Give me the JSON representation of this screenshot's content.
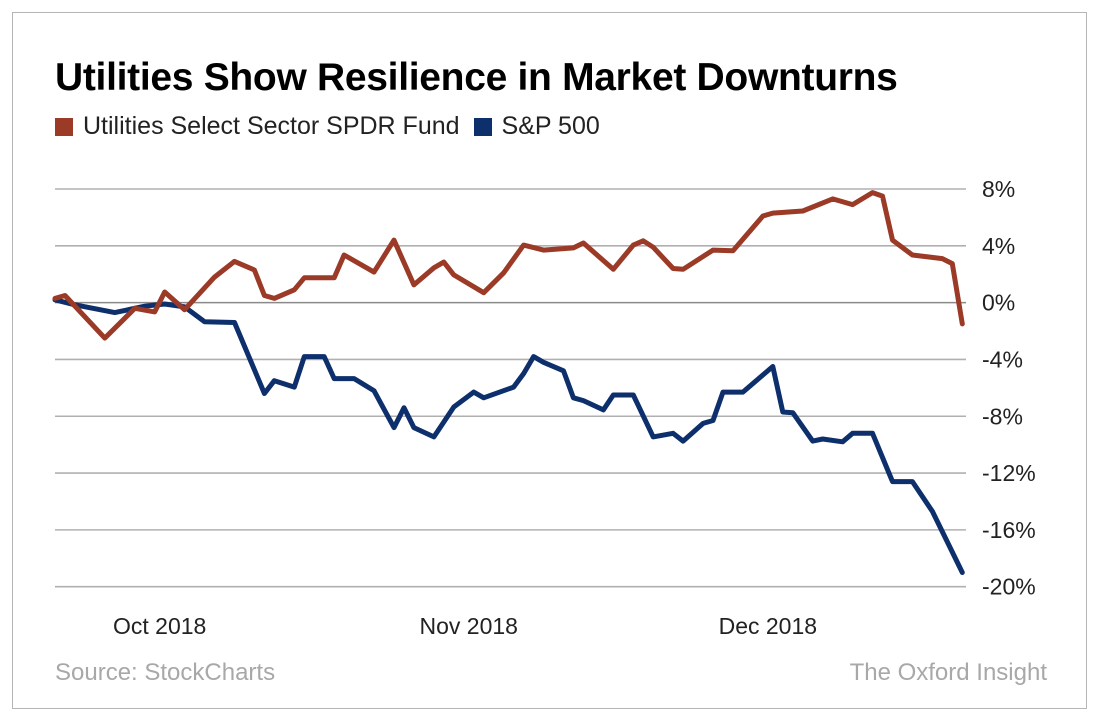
{
  "chart_data": {
    "type": "line",
    "title": "Utilities Show Resilience in Market Downturns",
    "xlabel": "",
    "ylabel": "",
    "x_tick_labels": [
      {
        "label": "Oct 2018",
        "date": "2018-10-01"
      },
      {
        "label": "Nov 2018",
        "date": "2018-11-01"
      },
      {
        "label": "Dec 2018",
        "date": "2018-12-01"
      }
    ],
    "y_ticks": [
      8,
      4,
      0,
      -4,
      -8,
      -12,
      -16,
      -20
    ],
    "y_tick_labels": [
      "8%",
      "4%",
      "0%",
      "-4%",
      "-8%",
      "-12%",
      "-16%",
      "-20%"
    ],
    "ylim": [
      -20,
      8
    ],
    "xlim": [
      "2018-09-20",
      "2018-12-20"
    ],
    "y_axis_side": "right",
    "grid": "horizontal",
    "legend_placement": "top-left",
    "series": [
      {
        "name": "Utilities Select Sector SPDR Fund",
        "color": "#9b3a26",
        "points": [
          [
            "2018-09-20",
            0.3
          ],
          [
            "2018-09-21",
            0.5
          ],
          [
            "2018-09-25",
            -2.5
          ],
          [
            "2018-09-28",
            -0.4
          ],
          [
            "2018-09-30",
            -0.65
          ],
          [
            "2018-10-01",
            0.75
          ],
          [
            "2018-10-03",
            -0.5
          ],
          [
            "2018-10-06",
            1.8
          ],
          [
            "2018-10-08",
            2.9
          ],
          [
            "2018-10-10",
            2.3
          ],
          [
            "2018-10-11",
            0.5
          ],
          [
            "2018-10-12",
            0.3
          ],
          [
            "2018-10-14",
            0.9
          ],
          [
            "2018-10-15",
            1.75
          ],
          [
            "2018-10-18",
            1.75
          ],
          [
            "2018-10-19",
            3.35
          ],
          [
            "2018-10-22",
            2.15
          ],
          [
            "2018-10-24",
            4.4
          ],
          [
            "2018-10-26",
            1.25
          ],
          [
            "2018-10-28",
            2.45
          ],
          [
            "2018-10-29",
            2.85
          ],
          [
            "2018-10-30",
            1.95
          ],
          [
            "2018-11-02",
            0.7
          ],
          [
            "2018-11-04",
            2.1
          ],
          [
            "2018-11-06",
            4.05
          ],
          [
            "2018-11-08",
            3.7
          ],
          [
            "2018-11-11",
            3.85
          ],
          [
            "2018-11-12",
            4.2
          ],
          [
            "2018-11-15",
            2.35
          ],
          [
            "2018-11-17",
            4.05
          ],
          [
            "2018-11-18",
            4.35
          ],
          [
            "2018-11-19",
            3.9
          ],
          [
            "2018-11-21",
            2.4
          ],
          [
            "2018-11-22",
            2.35
          ],
          [
            "2018-11-25",
            3.7
          ],
          [
            "2018-11-27",
            3.65
          ],
          [
            "2018-11-30",
            6.1
          ],
          [
            "2018-12-01",
            6.3
          ],
          [
            "2018-12-04",
            6.45
          ],
          [
            "2018-12-07",
            7.3
          ],
          [
            "2018-12-09",
            6.9
          ],
          [
            "2018-12-11",
            7.75
          ],
          [
            "2018-12-12",
            7.5
          ],
          [
            "2018-12-13",
            4.4
          ],
          [
            "2018-12-15",
            3.35
          ],
          [
            "2018-12-18",
            3.1
          ],
          [
            "2018-12-19",
            2.75
          ],
          [
            "2018-12-20",
            -1.5
          ]
        ]
      },
      {
        "name": "S&P 500",
        "color": "#0d2f6b",
        "points": [
          [
            "2018-09-20",
            0.2
          ],
          [
            "2018-09-22",
            -0.15
          ],
          [
            "2018-09-26",
            -0.7
          ],
          [
            "2018-09-29",
            -0.25
          ],
          [
            "2018-10-01",
            -0.1
          ],
          [
            "2018-10-03",
            -0.3
          ],
          [
            "2018-10-05",
            -1.35
          ],
          [
            "2018-10-08",
            -1.4
          ],
          [
            "2018-10-11",
            -6.4
          ],
          [
            "2018-10-12",
            -5.5
          ],
          [
            "2018-10-14",
            -5.95
          ],
          [
            "2018-10-15",
            -3.8
          ],
          [
            "2018-10-17",
            -3.8
          ],
          [
            "2018-10-18",
            -5.35
          ],
          [
            "2018-10-20",
            -5.35
          ],
          [
            "2018-10-22",
            -6.2
          ],
          [
            "2018-10-24",
            -8.8
          ],
          [
            "2018-10-25",
            -7.4
          ],
          [
            "2018-10-26",
            -8.8
          ],
          [
            "2018-10-28",
            -9.45
          ],
          [
            "2018-10-30",
            -7.35
          ],
          [
            "2018-11-01",
            -6.3
          ],
          [
            "2018-11-02",
            -6.7
          ],
          [
            "2018-11-05",
            -5.95
          ],
          [
            "2018-11-06",
            -5.0
          ],
          [
            "2018-11-07",
            -3.8
          ],
          [
            "2018-11-08",
            -4.2
          ],
          [
            "2018-11-10",
            -4.8
          ],
          [
            "2018-11-11",
            -6.7
          ],
          [
            "2018-11-12",
            -6.9
          ],
          [
            "2018-11-14",
            -7.55
          ],
          [
            "2018-11-15",
            -6.5
          ],
          [
            "2018-11-17",
            -6.5
          ],
          [
            "2018-11-19",
            -9.45
          ],
          [
            "2018-11-21",
            -9.2
          ],
          [
            "2018-11-22",
            -9.75
          ],
          [
            "2018-11-24",
            -8.5
          ],
          [
            "2018-11-25",
            -8.3
          ],
          [
            "2018-11-26",
            -6.3
          ],
          [
            "2018-11-28",
            -6.3
          ],
          [
            "2018-12-01",
            -4.5
          ],
          [
            "2018-12-02",
            -7.7
          ],
          [
            "2018-12-03",
            -7.75
          ],
          [
            "2018-12-05",
            -9.75
          ],
          [
            "2018-12-06",
            -9.6
          ],
          [
            "2018-12-08",
            -9.8
          ],
          [
            "2018-12-09",
            -9.2
          ],
          [
            "2018-12-11",
            -9.2
          ],
          [
            "2018-12-13",
            -12.6
          ],
          [
            "2018-12-15",
            -12.6
          ],
          [
            "2018-12-17",
            -14.7
          ],
          [
            "2018-12-20",
            -19.0
          ]
        ]
      }
    ]
  },
  "footer": {
    "source": "Source: StockCharts",
    "brand": "The Oxford Insight"
  }
}
